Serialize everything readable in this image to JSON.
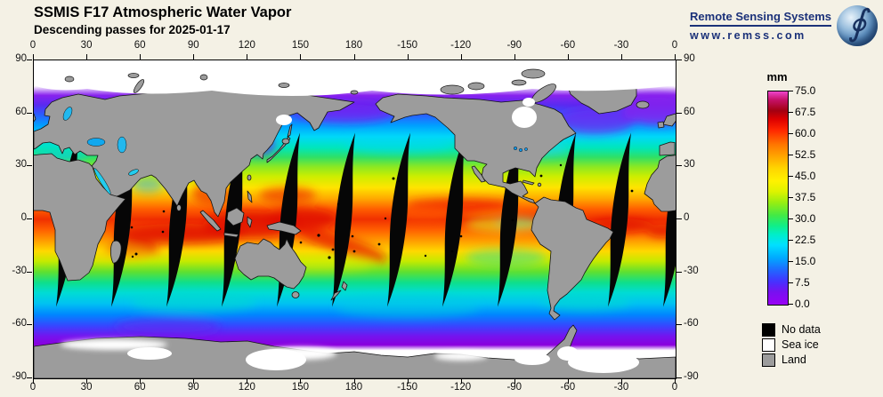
{
  "header": {
    "title": "SSMIS F17 Atmospheric Water Vapor",
    "subtitle": "Descending passes for 2025-01-17"
  },
  "logo": {
    "name": "Remote Sensing Systems",
    "url": "www.remss.com",
    "brand_color": "#1b3179",
    "globe_icon": "earth-globe-with-integral-symbol",
    "integral_glyph": "∮"
  },
  "axes": {
    "lon_labels": [
      "0",
      "30",
      "60",
      "90",
      "120",
      "150",
      "180",
      "-150",
      "-120",
      "-90",
      "-60",
      "-30",
      "0"
    ],
    "lat_labels": [
      "90",
      "60",
      "30",
      "0",
      "-30",
      "-60",
      "-90"
    ]
  },
  "colorbar": {
    "unit": "mm",
    "tick_labels": [
      "75.0",
      "67.5",
      "60.0",
      "52.5",
      "45.0",
      "37.5",
      "30.0",
      "22.5",
      "15.0",
      "7.5",
      "0.0"
    ],
    "value_range": [
      0.0,
      75.0
    ],
    "gradient_stops_top_to_bottom": [
      "#ee44cc 0%",
      "#c41166 4%",
      "#a30011 9%",
      "#dd0000 13%",
      "#ff2500 18%",
      "#ff7700 25%",
      "#ffaa00 31%",
      "#ffd500 36%",
      "#fff200 42%",
      "#ddf300 47%",
      "#99ee11 52%",
      "#44e944 58%",
      "#11ee88 63%",
      "#00eec8 67%",
      "#00e0ff 72%",
      "#00aaff 78%",
      "#2266ff 84%",
      "#4433ff 89%",
      "#7711f0 94%",
      "#9a00f5 100%"
    ]
  },
  "legend": [
    {
      "label": "No data",
      "color": "#000000"
    },
    {
      "label": "Sea ice",
      "color": "#ffffff"
    },
    {
      "label": "Land",
      "color": "#9c9c9c"
    }
  ],
  "map": {
    "land_color": "#9c9c9c",
    "no_data_color": "#000000",
    "sea_ice_color": "#ffffff",
    "background_color": "#f4f1e5"
  }
}
